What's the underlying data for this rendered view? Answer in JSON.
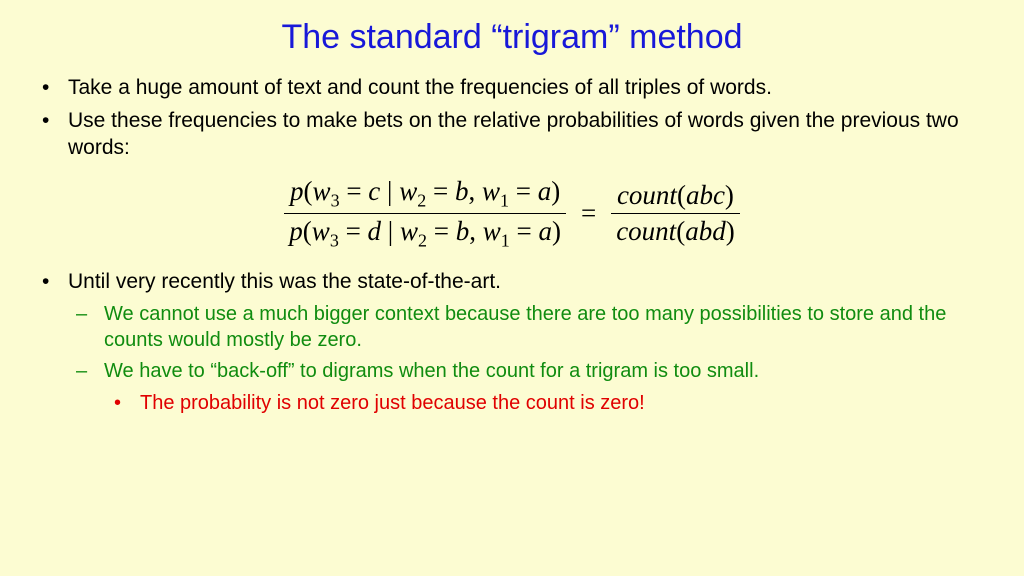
{
  "title_pre": "The standard ",
  "title_mid": "trigram",
  "title_post": " method",
  "bullet1": "Take a huge amount of text and count the frequencies of all triples of words.",
  "bullet2": "Use these frequencies to make bets on the relative probabilities of words given the previous two words:",
  "bullet3": "Until very recently this was the state-of-the-art.",
  "sub1": "We cannot use a much bigger context because there are too many possibilities to store and the counts would mostly be zero.",
  "sub2_pre": "We have to ",
  "sub2_mid": "back-off",
  "sub2_post": " to digrams when the count for a trigram is too small.",
  "subsub1": "The probability is not zero just because the count is zero!",
  "formula": {
    "lhs_num": "p(w₃ = c | w₂ = b, w₁ = a)",
    "lhs_den": "p(w₃ = d | w₂ = b, w₁ = a)",
    "rhs_num": "count(abc)",
    "rhs_den": "count(abd)"
  },
  "colors": {
    "background": "#fcfcd2",
    "title": "#1818d8",
    "body": "#000000",
    "sub": "#108c10",
    "subsub": "#e00000"
  }
}
